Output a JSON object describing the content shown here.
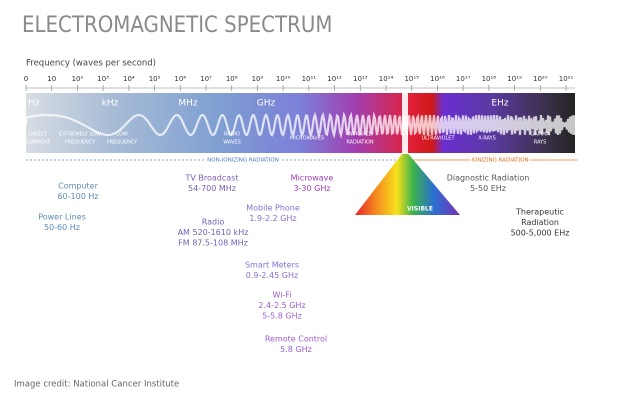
{
  "title": "ELECTROMAGNETIC SPECTRUM",
  "axis_label": "Frequency (waves per second)",
  "ticks": [
    "0",
    "10",
    "10²",
    "10³",
    "10⁴",
    "10⁵",
    "10⁶",
    "10⁷",
    "10⁸",
    "10⁹",
    "10¹⁰",
    "10¹¹",
    "10¹²",
    "10¹³",
    "10¹⁴",
    "10¹⁵",
    "10¹⁶",
    "10¹⁷",
    "10¹⁸",
    "10¹⁹",
    "10²⁰",
    "10²¹"
  ],
  "units": [
    "Hz",
    "kHz",
    "MHz",
    "GHz",
    "EHz"
  ],
  "bands": [
    {
      "lines": [
        "DIRECT",
        "CURRENT"
      ]
    },
    {
      "lines": [
        "EXTREMELY LOW",
        "FREQUENCY"
      ]
    },
    {
      "lines": [
        "LOW",
        "FREQUENCY"
      ]
    },
    {
      "lines": [
        "RADIO",
        "WAVES"
      ]
    },
    {
      "lines": [
        "MICROWAVES"
      ]
    },
    {
      "lines": [
        "INFRARED",
        "RADIATION"
      ]
    },
    {
      "lines": [
        "ULTRAVIOLET"
      ]
    },
    {
      "lines": [
        "X-RAYS"
      ]
    },
    {
      "lines": [
        "GAMMA",
        "RAYS"
      ]
    }
  ],
  "regions": [
    "NON-IONIZING RADIATION",
    "IONIZING RADIATION"
  ],
  "visible": "VISIBLE",
  "sources": [
    {
      "lines": [
        "Computer",
        "60-100 Hz"
      ]
    },
    {
      "lines": [
        "Power Lines",
        "50-60 Hz"
      ]
    },
    {
      "lines": [
        "TV Broadcast",
        "54-700 MHz"
      ]
    },
    {
      "lines": [
        "Radio",
        "AM 520-1610 kHz",
        "FM 87.5-108 MHz"
      ]
    },
    {
      "lines": [
        "Microwave",
        "3-30 GHz"
      ]
    },
    {
      "lines": [
        "Mobile Phone",
        "1.9-2.2 GHz"
      ]
    },
    {
      "lines": [
        "Smart Meters",
        "0.9-2.45 GHz"
      ]
    },
    {
      "lines": [
        "Wi-Fi",
        "2.4-2.5 GHz",
        "5-5.8 GHz"
      ]
    },
    {
      "lines": [
        "Remote Control",
        "5.8 GHz"
      ]
    },
    {
      "lines": [
        "Diagnostic Radiation",
        "5-50 EHz"
      ]
    },
    {
      "lines": [
        "Therapeutic",
        "Radiation",
        "500-5,000 EHz"
      ]
    }
  ],
  "credit": "Image credit: National Cancer Institute"
}
